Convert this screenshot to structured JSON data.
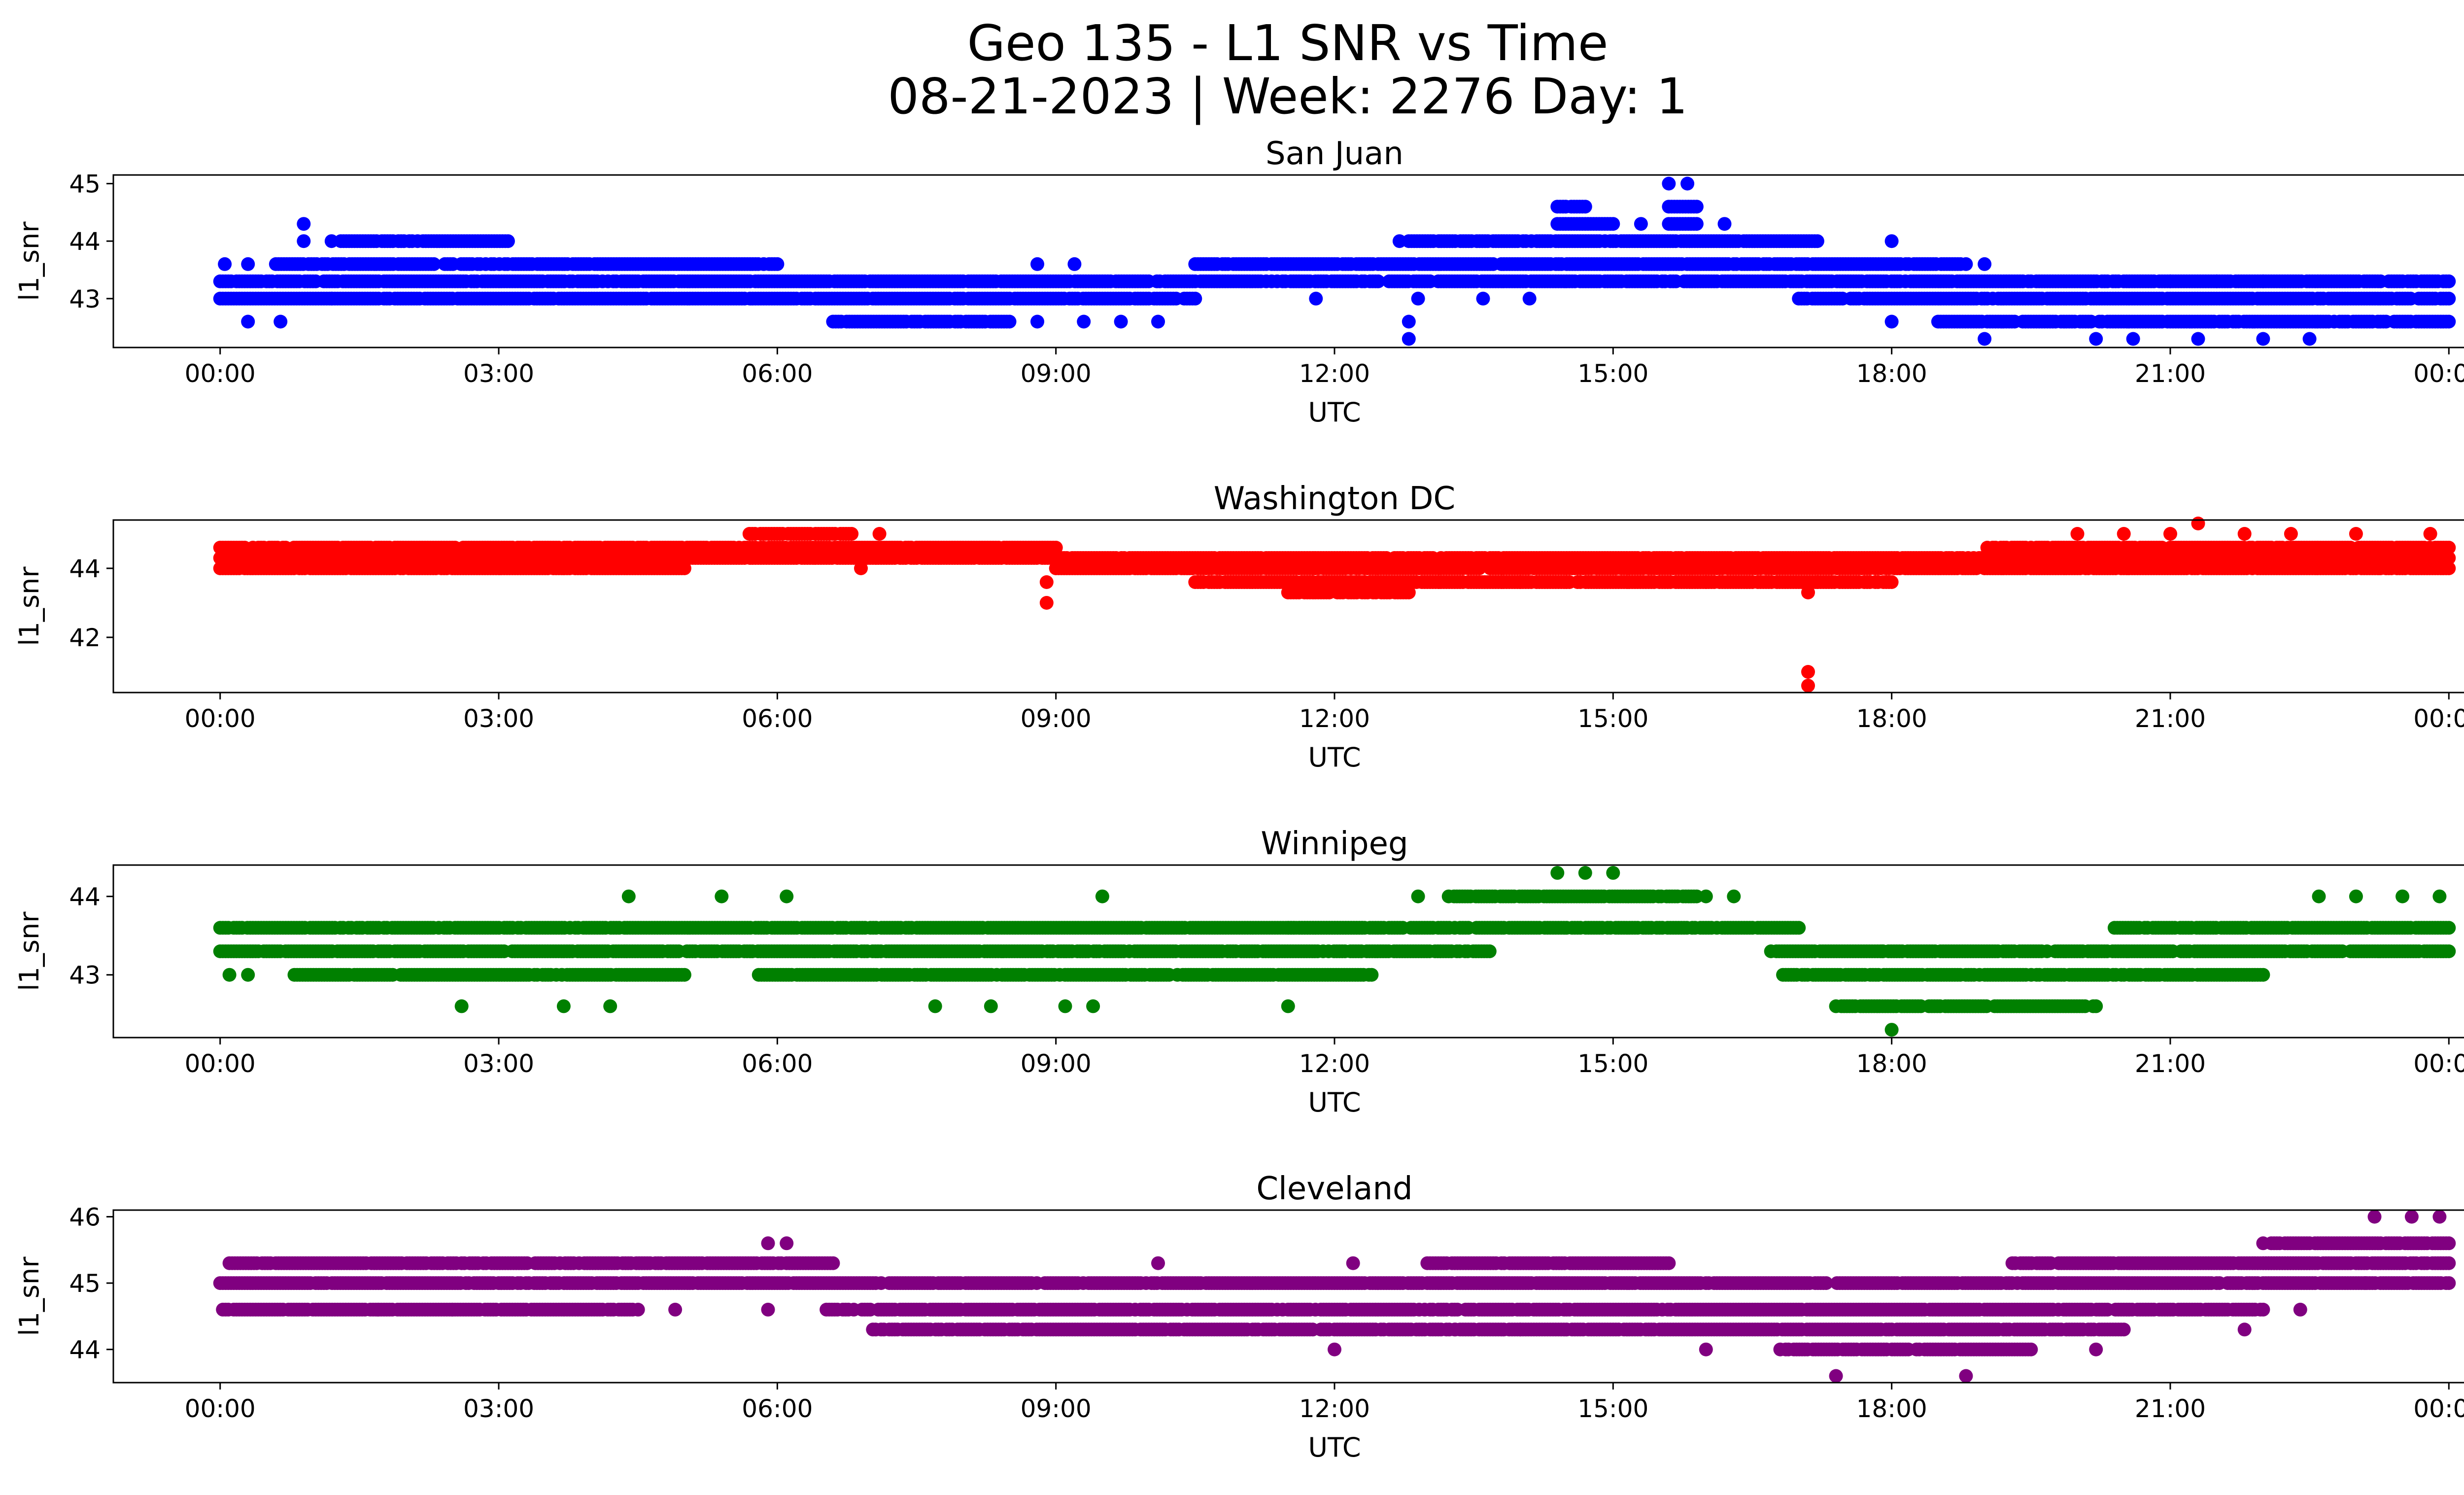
{
  "figure": {
    "title_line1": "Geo 135 - L1 SNR vs Time",
    "title_line2": "08-21-2023 | Week: 2276 Day: 1"
  },
  "chart_data": [
    {
      "type": "scatter",
      "title": "San Juan",
      "xlabel": "UTC",
      "ylabel": "l1_snr",
      "color": "#0000ff",
      "xlim_hours": [
        -1.15,
        25.15
      ],
      "ylim": [
        42.15,
        45.15
      ],
      "yticks": [
        43,
        44,
        45
      ],
      "ytick_labels": [
        "43",
        "44",
        "45"
      ],
      "xticks_hours": [
        0,
        3,
        6,
        9,
        12,
        15,
        18,
        21,
        24
      ],
      "xtick_labels": [
        "00:00",
        "03:00",
        "06:00",
        "09:00",
        "12:00",
        "15:00",
        "18:00",
        "21:00",
        "00:00"
      ],
      "dense": [
        {
          "from": 0.0,
          "to": 10.5,
          "y": 43.0
        },
        {
          "from": 0.0,
          "to": 24.0,
          "y": 43.3
        },
        {
          "from": 0.6,
          "to": 6.0,
          "y": 43.6
        },
        {
          "from": 10.5,
          "to": 18.8,
          "y": 43.6
        },
        {
          "from": 1.3,
          "to": 3.1,
          "y": 44.0
        },
        {
          "from": 12.8,
          "to": 17.2,
          "y": 44.0
        },
        {
          "from": 17.0,
          "to": 24.0,
          "y": 43.0
        },
        {
          "from": 18.5,
          "to": 24.0,
          "y": 42.6
        },
        {
          "from": 6.6,
          "to": 8.5,
          "y": 42.6
        },
        {
          "from": 14.4,
          "to": 15.0,
          "y": 44.3
        },
        {
          "from": 15.6,
          "to": 15.9,
          "y": 44.3
        },
        {
          "from": 15.6,
          "to": 15.9,
          "y": 44.6
        },
        {
          "from": 14.4,
          "to": 14.7,
          "y": 44.6
        }
      ],
      "points": [
        [
          0.05,
          43.6
        ],
        [
          0.3,
          43.6
        ],
        [
          0.3,
          42.6
        ],
        [
          0.65,
          42.6
        ],
        [
          0.9,
          44.3
        ],
        [
          0.9,
          44.0
        ],
        [
          1.2,
          43.0
        ],
        [
          1.2,
          44.0
        ],
        [
          8.8,
          43.6
        ],
        [
          9.2,
          43.6
        ],
        [
          8.8,
          42.6
        ],
        [
          9.3,
          42.6
        ],
        [
          9.7,
          42.6
        ],
        [
          10.1,
          42.6
        ],
        [
          11.8,
          43.0
        ],
        [
          12.8,
          42.3
        ],
        [
          12.8,
          42.6
        ],
        [
          12.7,
          44.0
        ],
        [
          12.9,
          43.0
        ],
        [
          13.6,
          43.0
        ],
        [
          14.1,
          43.0
        ],
        [
          15.3,
          44.3
        ],
        [
          16.2,
          44.3
        ],
        [
          18.0,
          44.0
        ],
        [
          19.0,
          43.6
        ],
        [
          19.0,
          42.3
        ],
        [
          20.2,
          42.3
        ],
        [
          20.6,
          42.3
        ],
        [
          21.3,
          42.3
        ],
        [
          22.0,
          42.3
        ],
        [
          22.5,
          42.3
        ],
        [
          21.0,
          43.3
        ],
        [
          21.5,
          43.3
        ],
        [
          22.0,
          43.3
        ],
        [
          18.0,
          42.6
        ],
        [
          15.6,
          45.0
        ],
        [
          15.8,
          45.0
        ]
      ]
    },
    {
      "type": "scatter",
      "title": "Washington DC",
      "xlabel": "UTC",
      "ylabel": "l1_snr",
      "color": "#ff0000",
      "xlim_hours": [
        -1.15,
        25.15
      ],
      "ylim": [
        40.4,
        45.4
      ],
      "yticks": [
        42,
        44
      ],
      "ytick_labels": [
        "42",
        "44"
      ],
      "xticks_hours": [
        0,
        3,
        6,
        9,
        12,
        15,
        18,
        21,
        24
      ],
      "xtick_labels": [
        "00:00",
        "03:00",
        "06:00",
        "09:00",
        "12:00",
        "15:00",
        "18:00",
        "21:00",
        "00:00"
      ],
      "dense": [
        {
          "from": 0.0,
          "to": 24.0,
          "y": 44.3
        },
        {
          "from": 0.0,
          "to": 5.0,
          "y": 44.0
        },
        {
          "from": 9.0,
          "to": 24.0,
          "y": 44.0
        },
        {
          "from": 0.0,
          "to": 9.0,
          "y": 44.6
        },
        {
          "from": 19.0,
          "to": 24.0,
          "y": 44.6
        },
        {
          "from": 10.5,
          "to": 18.0,
          "y": 43.6
        },
        {
          "from": 11.5,
          "to": 12.8,
          "y": 43.3
        },
        {
          "from": 5.7,
          "to": 6.8,
          "y": 45.0
        }
      ],
      "points": [
        [
          8.9,
          43.0
        ],
        [
          8.9,
          43.6
        ],
        [
          17.1,
          41.0
        ],
        [
          17.1,
          40.6
        ],
        [
          17.1,
          43.3
        ],
        [
          17.2,
          43.6
        ],
        [
          21.3,
          45.3
        ],
        [
          21.0,
          45.0
        ],
        [
          20.0,
          45.0
        ],
        [
          22.3,
          45.0
        ],
        [
          23.0,
          45.0
        ],
        [
          23.8,
          45.0
        ],
        [
          7.1,
          45.0
        ],
        [
          6.9,
          44.0
        ],
        [
          16.0,
          43.6
        ],
        [
          14.0,
          43.6
        ],
        [
          20.5,
          45.0
        ],
        [
          21.8,
          45.0
        ]
      ]
    },
    {
      "type": "scatter",
      "title": "Winnipeg",
      "xlabel": "UTC",
      "ylabel": "l1_snr",
      "color": "#008000",
      "xlim_hours": [
        -1.15,
        25.15
      ],
      "ylim": [
        42.2,
        44.4
      ],
      "yticks": [
        43,
        44
      ],
      "ytick_labels": [
        "43",
        "44"
      ],
      "xticks_hours": [
        0,
        3,
        6,
        9,
        12,
        15,
        18,
        21,
        24
      ],
      "xtick_labels": [
        "00:00",
        "03:00",
        "06:00",
        "09:00",
        "12:00",
        "15:00",
        "18:00",
        "21:00",
        "00:00"
      ],
      "dense": [
        {
          "from": 0.0,
          "to": 13.7,
          "y": 43.3
        },
        {
          "from": 16.7,
          "to": 24.0,
          "y": 43.3
        },
        {
          "from": 0.0,
          "to": 12.3,
          "y": 43.6
        },
        {
          "from": 11.5,
          "to": 17.0,
          "y": 43.6
        },
        {
          "from": 20.4,
          "to": 24.0,
          "y": 43.6
        },
        {
          "from": 13.2,
          "to": 15.9,
          "y": 44.0
        },
        {
          "from": 0.8,
          "to": 5.0,
          "y": 43.0
        },
        {
          "from": 5.8,
          "to": 12.4,
          "y": 43.0
        },
        {
          "from": 16.8,
          "to": 22.0,
          "y": 43.0
        },
        {
          "from": 17.4,
          "to": 20.2,
          "y": 42.6
        }
      ],
      "points": [
        [
          0.1,
          43.0
        ],
        [
          0.3,
          43.0
        ],
        [
          2.6,
          42.6
        ],
        [
          3.7,
          42.6
        ],
        [
          4.2,
          42.6
        ],
        [
          4.4,
          44.0
        ],
        [
          5.4,
          44.0
        ],
        [
          6.1,
          44.0
        ],
        [
          9.5,
          44.0
        ],
        [
          7.7,
          42.6
        ],
        [
          8.3,
          42.6
        ],
        [
          9.1,
          42.6
        ],
        [
          9.4,
          42.6
        ],
        [
          11.5,
          42.6
        ],
        [
          12.9,
          44.0
        ],
        [
          14.4,
          44.3
        ],
        [
          14.7,
          44.3
        ],
        [
          15.0,
          44.3
        ],
        [
          18.0,
          42.3
        ],
        [
          17.9,
          43.3
        ],
        [
          22.6,
          44.0
        ],
        [
          23.0,
          44.0
        ],
        [
          23.5,
          44.0
        ],
        [
          23.9,
          44.0
        ],
        [
          16.3,
          44.0
        ],
        [
          16.0,
          44.0
        ]
      ]
    },
    {
      "type": "scatter",
      "title": "Cleveland",
      "xlabel": "UTC",
      "ylabel": "l1_snr",
      "color": "#800080",
      "xlim_hours": [
        -1.15,
        25.15
      ],
      "ylim": [
        43.5,
        46.1
      ],
      "yticks": [
        44,
        45,
        46
      ],
      "ytick_labels": [
        "44",
        "45",
        "46"
      ],
      "xticks_hours": [
        0,
        3,
        6,
        9,
        12,
        15,
        18,
        21,
        24
      ],
      "xtick_labels": [
        "00:00",
        "03:00",
        "06:00",
        "09:00",
        "12:00",
        "15:00",
        "18:00",
        "21:00",
        "00:00"
      ],
      "dense": [
        {
          "from": 0.0,
          "to": 24.0,
          "y": 45.0
        },
        {
          "from": 0.1,
          "to": 6.6,
          "y": 45.3
        },
        {
          "from": 19.3,
          "to": 22.5,
          "y": 45.3
        },
        {
          "from": 13.0,
          "to": 15.6,
          "y": 45.3
        },
        {
          "from": 22.0,
          "to": 24.0,
          "y": 45.3
        },
        {
          "from": 22.0,
          "to": 24.0,
          "y": 45.6
        },
        {
          "from": 6.5,
          "to": 22.0,
          "y": 44.6
        },
        {
          "from": 0.0,
          "to": 4.5,
          "y": 44.6
        },
        {
          "from": 7.0,
          "to": 20.5,
          "y": 44.3
        },
        {
          "from": 16.8,
          "to": 19.5,
          "y": 44.0
        }
      ],
      "points": [
        [
          5.9,
          45.6
        ],
        [
          6.1,
          45.6
        ],
        [
          4.9,
          44.6
        ],
        [
          5.9,
          44.6
        ],
        [
          12.0,
          44.0
        ],
        [
          16.0,
          44.0
        ],
        [
          17.4,
          43.6
        ],
        [
          18.8,
          43.6
        ],
        [
          20.2,
          44.0
        ],
        [
          23.2,
          46.0
        ],
        [
          23.6,
          46.0
        ],
        [
          23.9,
          46.0
        ],
        [
          22.4,
          44.6
        ],
        [
          23.1,
          45.0
        ],
        [
          10.1,
          45.3
        ],
        [
          12.2,
          45.3
        ],
        [
          1.7,
          44.6
        ],
        [
          2.5,
          44.6
        ],
        [
          21.8,
          44.3
        ],
        [
          14.0,
          44.3
        ],
        [
          13.3,
          44.3
        ]
      ]
    }
  ]
}
